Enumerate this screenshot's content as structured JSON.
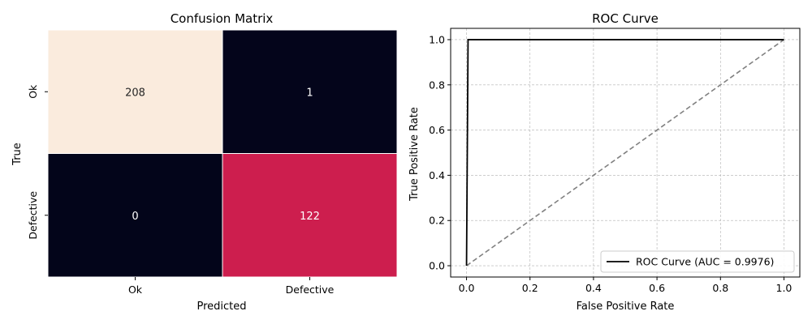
{
  "chart_data": [
    {
      "type": "heatmap",
      "title": "Confusion Matrix",
      "xlabel": "Predicted",
      "ylabel": "True",
      "x_categories": [
        "Ok",
        "Defective"
      ],
      "y_categories": [
        "Ok",
        "Defective"
      ],
      "values": [
        [
          208,
          1
        ],
        [
          0,
          122
        ]
      ],
      "colormap": "rocket",
      "colorbar": false
    },
    {
      "type": "line",
      "title": "ROC Curve",
      "xlabel": "False Positive Rate",
      "ylabel": "True Positive Rate",
      "xlim": [
        -0.05,
        1.05
      ],
      "ylim": [
        -0.05,
        1.05
      ],
      "xticks": [
        "0.0",
        "0.2",
        "0.4",
        "0.6",
        "0.8",
        "1.0"
      ],
      "yticks": [
        "0.0",
        "0.2",
        "0.4",
        "0.6",
        "0.8",
        "1.0"
      ],
      "grid": true,
      "legend_position": "lower-right",
      "series": [
        {
          "name": "ROC Curve (AUC = 0.9976)",
          "color": "#000000",
          "style": "solid",
          "x": [
            0.0,
            0.0,
            0.0048,
            0.0048,
            1.0
          ],
          "y": [
            0.0,
            0.0,
            1.0,
            1.0,
            1.0
          ]
        },
        {
          "color": "#808080",
          "style": "dashed",
          "x": [
            0.0,
            1.0
          ],
          "y": [
            0.0,
            1.0
          ]
        }
      ]
    }
  ]
}
